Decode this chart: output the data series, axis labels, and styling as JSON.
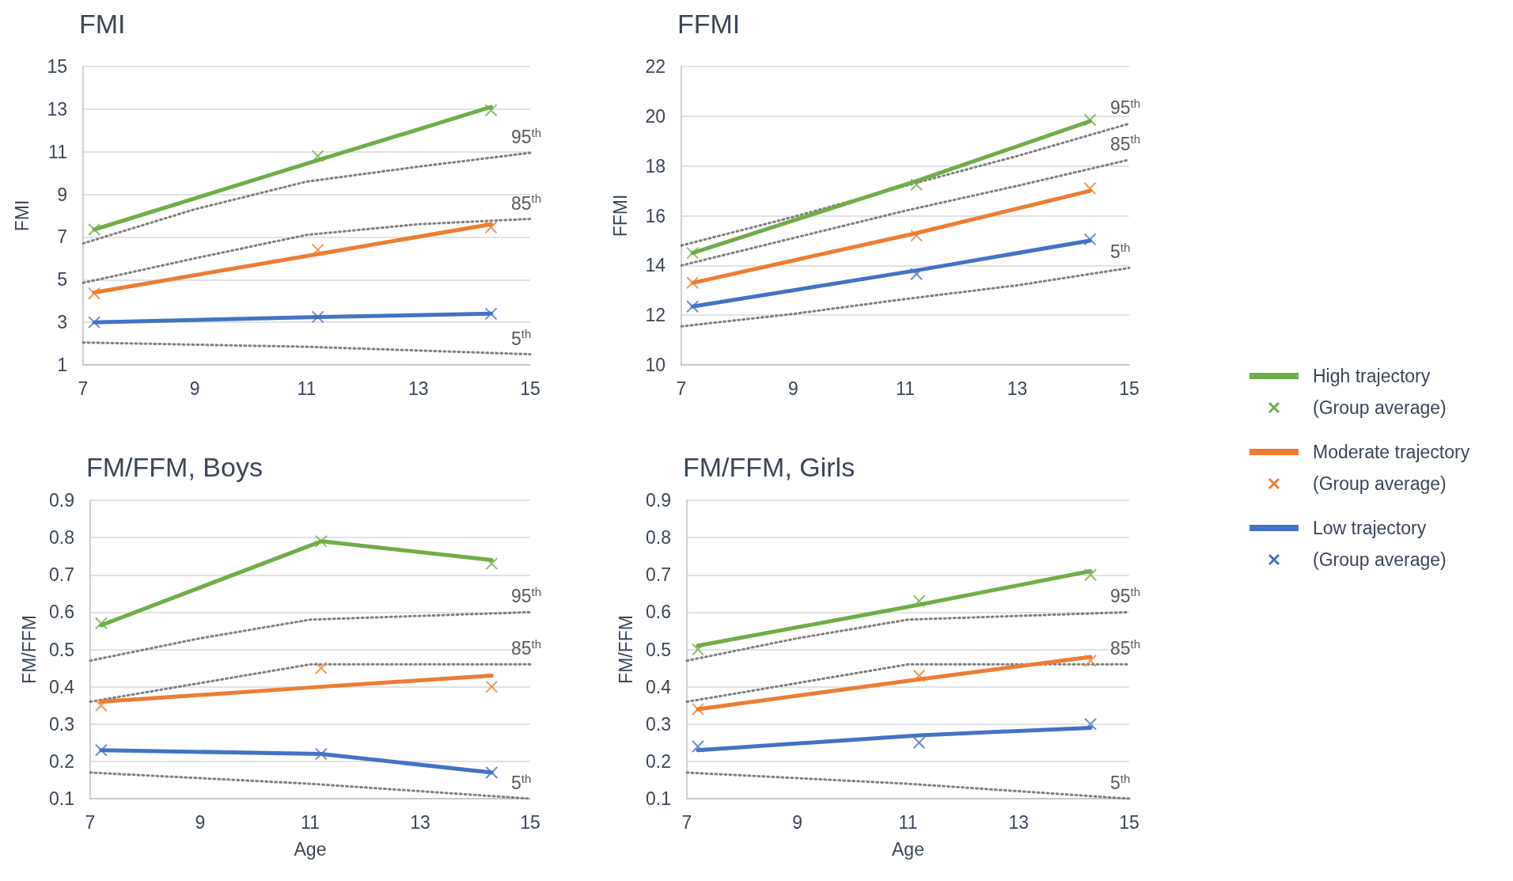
{
  "chart_data": [
    {
      "type": "line",
      "title": "FMI",
      "ylabel": "FMI",
      "xlim": [
        7,
        15
      ],
      "xticks": [
        7,
        9,
        11,
        13,
        15
      ],
      "ylim": [
        1,
        15
      ],
      "yticks": [
        1,
        3,
        5,
        7,
        9,
        11,
        13,
        15
      ],
      "grid": "y",
      "legend": false,
      "line_style": "solid",
      "series": [
        {
          "color": "#70ad47",
          "marker": "none",
          "x": [
            7.2,
            11.2,
            14.3
          ],
          "values": [
            7.35,
            10.6,
            13.1
          ]
        },
        {
          "type": "scatter",
          "color": "#70ad47",
          "marker": "cross",
          "x": [
            7.2,
            11.2,
            14.3
          ],
          "values": [
            7.35,
            10.8,
            12.95
          ]
        },
        {
          "color": "#ed7d31",
          "marker": "none",
          "x": [
            7.2,
            11.2,
            14.3
          ],
          "values": [
            4.4,
            6.2,
            7.6
          ]
        },
        {
          "type": "scatter",
          "color": "#ed7d31",
          "marker": "cross",
          "x": [
            7.2,
            11.2,
            14.3
          ],
          "values": [
            4.35,
            6.4,
            7.45
          ]
        },
        {
          "color": "#4472c4",
          "marker": "none",
          "x": [
            7.2,
            11.2,
            14.3
          ],
          "values": [
            3.0,
            3.25,
            3.4
          ]
        },
        {
          "type": "scatter",
          "color": "#4472c4",
          "marker": "cross",
          "x": [
            7.2,
            11.2,
            14.3
          ],
          "values": [
            3.0,
            3.25,
            3.4
          ]
        },
        {
          "name": "95$^{th}$",
          "color": "#7f7f7f",
          "marker": "none",
          "line_style": "dotted",
          "x": [
            7,
            9,
            11,
            13,
            15
          ],
          "values": [
            6.7,
            8.3,
            9.6,
            10.3,
            10.95
          ]
        },
        {
          "name": "85$^{th}$",
          "color": "#7f7f7f",
          "marker": "none",
          "line_style": "dotted",
          "x": [
            7,
            9,
            11,
            13,
            15
          ],
          "values": [
            4.85,
            6.0,
            7.1,
            7.6,
            7.85
          ]
        },
        {
          "name": "5$^{th}$",
          "color": "#7f7f7f",
          "marker": "none",
          "line_style": "dotted",
          "x": [
            7,
            11,
            15
          ],
          "values": [
            2.05,
            1.85,
            1.5
          ]
        }
      ]
    },
    {
      "type": "line",
      "title": "FFMI",
      "ylabel": "FFMI",
      "xlim": [
        7,
        15
      ],
      "xticks": [
        7,
        9,
        11,
        13,
        15
      ],
      "ylim": [
        10,
        22
      ],
      "yticks": [
        10,
        12,
        14,
        16,
        18,
        20,
        22
      ],
      "grid": "y",
      "legend": "right",
      "line_style": "solid",
      "series": [
        {
          "name": "High trajectory",
          "color": "#70ad47",
          "marker": "none",
          "x": [
            7.2,
            11.2,
            14.3
          ],
          "values": [
            14.5,
            17.4,
            19.8
          ]
        },
        {
          "name": "(Group average)",
          "type": "scatter",
          "color": "#70ad47",
          "marker": "cross",
          "x": [
            7.2,
            11.2,
            14.3
          ],
          "values": [
            14.5,
            17.25,
            19.85
          ]
        },
        {
          "name": "Moderate trajectory",
          "color": "#ed7d31",
          "marker": "none",
          "x": [
            7.2,
            11.2,
            14.3
          ],
          "values": [
            13.3,
            15.3,
            17.0
          ]
        },
        {
          "name": "(Group average)",
          "type": "scatter",
          "color": "#ed7d31",
          "marker": "cross",
          "x": [
            7.2,
            11.2,
            14.3
          ],
          "values": [
            13.3,
            15.2,
            17.1
          ]
        },
        {
          "name": "Low trajectory",
          "color": "#4472c4",
          "marker": "none",
          "x": [
            7.2,
            11.2,
            14.3
          ],
          "values": [
            12.35,
            13.8,
            15.0
          ]
        },
        {
          "name": "(Group average)",
          "type": "scatter",
          "color": "#4472c4",
          "marker": "cross",
          "x": [
            7.2,
            11.2,
            14.3
          ],
          "values": [
            12.35,
            13.65,
            15.05
          ]
        },
        {
          "name": "95$^{th}$",
          "color": "#7f7f7f",
          "marker": "none",
          "line_style": "dotted",
          "x": [
            7,
            9,
            11,
            13,
            15
          ],
          "values": [
            14.8,
            15.95,
            17.2,
            18.4,
            19.7
          ]
        },
        {
          "name": "85$^{th}$",
          "color": "#7f7f7f",
          "marker": "none",
          "line_style": "dotted",
          "x": [
            7,
            9,
            11,
            13,
            15
          ],
          "values": [
            14.0,
            15.1,
            16.2,
            17.2,
            18.25
          ]
        },
        {
          "name": "5$^{th}$",
          "color": "#7f7f7f",
          "marker": "none",
          "line_style": "dotted",
          "x": [
            7,
            9,
            11,
            13,
            15
          ],
          "values": [
            11.55,
            12.05,
            12.65,
            13.2,
            13.9
          ]
        }
      ]
    },
    {
      "type": "line",
      "title": "FM/FFM, Boys",
      "xlabel": "Age",
      "ylabel": "FM/FFM",
      "xlim": [
        7,
        15
      ],
      "xticks": [
        7,
        9,
        11,
        13,
        15
      ],
      "ylim": [
        0.1,
        0.9
      ],
      "yticks": [
        0.1,
        0.2,
        0.3,
        0.4,
        0.5,
        0.6,
        0.7,
        0.8,
        0.9
      ],
      "grid": "y",
      "legend": false,
      "line_style": "solid",
      "series": [
        {
          "color": "#70ad47",
          "marker": "none",
          "x": [
            7.2,
            11.2,
            14.3
          ],
          "values": [
            0.565,
            0.79,
            0.74
          ]
        },
        {
          "type": "scatter",
          "color": "#70ad47",
          "marker": "cross",
          "x": [
            7.2,
            11.2,
            14.3
          ],
          "values": [
            0.57,
            0.79,
            0.73
          ]
        },
        {
          "color": "#ed7d31",
          "marker": "none",
          "x": [
            7.2,
            11.2,
            14.3
          ],
          "values": [
            0.36,
            0.4,
            0.43
          ]
        },
        {
          "type": "scatter",
          "color": "#ed7d31",
          "marker": "cross",
          "x": [
            7.2,
            11.2,
            14.3
          ],
          "values": [
            0.35,
            0.45,
            0.4
          ]
        },
        {
          "color": "#4472c4",
          "marker": "none",
          "x": [
            7.2,
            11.2,
            14.3
          ],
          "values": [
            0.23,
            0.22,
            0.17
          ]
        },
        {
          "type": "scatter",
          "color": "#4472c4",
          "marker": "cross",
          "x": [
            7.2,
            11.2,
            14.3
          ],
          "values": [
            0.23,
            0.22,
            0.17
          ]
        },
        {
          "name": "95$^{th}$",
          "color": "#7f7f7f",
          "marker": "none",
          "line_style": "dotted",
          "x": [
            7,
            9,
            11,
            13,
            15
          ],
          "values": [
            0.47,
            0.53,
            0.58,
            0.59,
            0.6
          ]
        },
        {
          "name": "85$^{th}$",
          "color": "#7f7f7f",
          "marker": "none",
          "line_style": "dotted",
          "x": [
            7,
            9,
            11,
            13,
            15
          ],
          "values": [
            0.36,
            0.41,
            0.46,
            0.46,
            0.46
          ]
        },
        {
          "name": "5$^{th}$",
          "color": "#7f7f7f",
          "marker": "none",
          "line_style": "dotted",
          "x": [
            7,
            11,
            13,
            15
          ],
          "values": [
            0.17,
            0.14,
            0.12,
            0.1
          ]
        }
      ]
    },
    {
      "type": "line",
      "title": "FM/FFM, Girls",
      "xlabel": "Age",
      "ylabel": "FM/FFM",
      "xlim": [
        7,
        15
      ],
      "xticks": [
        7,
        9,
        11,
        13,
        15
      ],
      "ylim": [
        0.1,
        0.9
      ],
      "yticks": [
        0.1,
        0.2,
        0.3,
        0.4,
        0.5,
        0.6,
        0.7,
        0.8,
        0.9
      ],
      "grid": "y",
      "legend": false,
      "line_style": "solid",
      "series": [
        {
          "color": "#70ad47",
          "marker": "none",
          "x": [
            7.2,
            11.2,
            14.3
          ],
          "values": [
            0.51,
            0.62,
            0.71
          ]
        },
        {
          "type": "scatter",
          "color": "#70ad47",
          "marker": "cross",
          "x": [
            7.2,
            11.2,
            14.3
          ],
          "values": [
            0.5,
            0.63,
            0.7
          ]
        },
        {
          "color": "#ed7d31",
          "marker": "none",
          "x": [
            7.2,
            11.2,
            14.3
          ],
          "values": [
            0.34,
            0.42,
            0.48
          ]
        },
        {
          "type": "scatter",
          "color": "#ed7d31",
          "marker": "cross",
          "x": [
            7.2,
            11.2,
            14.3
          ],
          "values": [
            0.34,
            0.43,
            0.47
          ]
        },
        {
          "color": "#4472c4",
          "marker": "none",
          "x": [
            7.2,
            11.2,
            14.3
          ],
          "values": [
            0.23,
            0.27,
            0.29
          ]
        },
        {
          "type": "scatter",
          "color": "#4472c4",
          "marker": "cross",
          "x": [
            7.2,
            11.2,
            14.3
          ],
          "values": [
            0.24,
            0.25,
            0.3
          ]
        },
        {
          "name": "95$^{th}$",
          "color": "#7f7f7f",
          "marker": "none",
          "line_style": "dotted",
          "x": [
            7,
            9,
            11,
            13,
            15
          ],
          "values": [
            0.47,
            0.53,
            0.58,
            0.59,
            0.6
          ]
        },
        {
          "name": "85$^{th}$",
          "color": "#7f7f7f",
          "marker": "none",
          "line_style": "dotted",
          "x": [
            7,
            9,
            11,
            13,
            15
          ],
          "values": [
            0.36,
            0.41,
            0.46,
            0.46,
            0.46
          ]
        },
        {
          "name": "5$^{th}$",
          "color": "#7f7f7f",
          "marker": "none",
          "line_style": "dotted",
          "x": [
            7,
            11,
            13,
            15
          ],
          "values": [
            0.17,
            0.14,
            0.12,
            0.1
          ]
        }
      ]
    }
  ]
}
